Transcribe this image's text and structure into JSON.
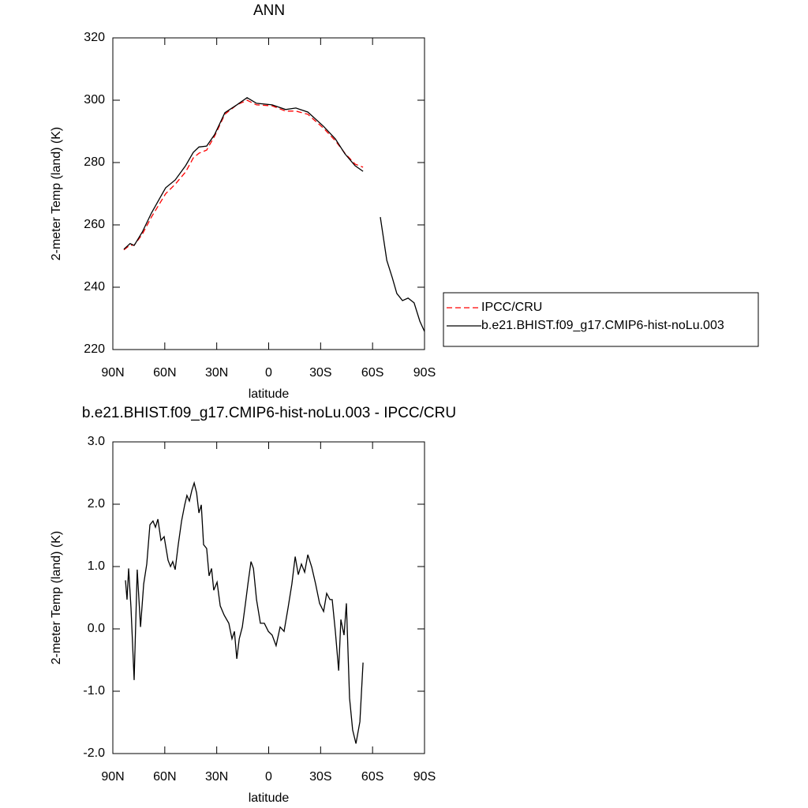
{
  "chart_data": [
    {
      "type": "line",
      "title": "ANN",
      "xlabel": "latitude",
      "ylabel": "2-meter Temp (land) (K)",
      "x": [
        83.6,
        80,
        77.7,
        73,
        67.7,
        59.5,
        54,
        48,
        43.5,
        40.3,
        35.8,
        31.2,
        25.3,
        18.4,
        12.5,
        7,
        -2,
        -9.8,
        -15.7,
        -22.6,
        -31.7,
        -38.5,
        -44,
        -49.9,
        -54.5,
        -60,
        -64.5,
        -68.2,
        -71.4,
        -74,
        -77.3,
        -80.5,
        -84,
        -87.3,
        -90
      ],
      "series": [
        {
          "name": "IPCC/CRU",
          "color": "#ff0000",
          "dashed": true,
          "values": [
            252,
            253.5,
            253.5,
            257,
            262.5,
            270,
            273,
            277,
            281.5,
            283,
            284,
            288.5,
            295.5,
            298.5,
            300,
            298.5,
            298.2,
            296.5,
            296.5,
            295.5,
            291,
            287,
            283,
            279.5,
            278.5,
            null,
            null,
            null,
            null,
            null,
            null,
            null,
            null,
            null,
            null
          ]
        },
        {
          "name": "b.e21.BHIST.f09_g17.CMIP6-hist-noLu.003",
          "color": "#000000",
          "dashed": false,
          "values": [
            252.2,
            254,
            253.4,
            257.7,
            263.8,
            271.9,
            274.4,
            279,
            283.3,
            285,
            285.3,
            289,
            296,
            298.5,
            300.8,
            299,
            298.5,
            297,
            297.5,
            296.2,
            291.6,
            287.6,
            282.8,
            279,
            277.2,
            null,
            262.5,
            248.6,
            243,
            238,
            235.7,
            236.5,
            235,
            229.1,
            225.8
          ]
        }
      ],
      "xlim": [
        90,
        -90
      ],
      "xticks": [
        {
          "value": 90,
          "label": "90N"
        },
        {
          "value": 60,
          "label": "60N"
        },
        {
          "value": 30,
          "label": "30N"
        },
        0,
        {
          "value": -30,
          "label": "30S"
        },
        {
          "value": -60,
          "label": "60S"
        },
        {
          "value": -90,
          "label": "90S"
        }
      ],
      "ylim": [
        220,
        320
      ],
      "yticks": [
        220,
        240,
        260,
        280,
        300,
        320
      ],
      "legend": "right"
    },
    {
      "type": "line",
      "title": "b.e21.BHIST.f09_g17.CMIP6-hist-noLu.003 - IPCC/CRU",
      "xlabel": "latitude",
      "ylabel": "2-meter Temp (land) (K)",
      "x": [
        82.7,
        81.8,
        80.9,
        79.5,
        77.7,
        75.9,
        74,
        72.2,
        70.4,
        68.6,
        66.8,
        65.4,
        64,
        62.2,
        60.4,
        58.1,
        56.7,
        55.4,
        54,
        52.2,
        50.3,
        48.5,
        47.2,
        45.8,
        44.4,
        43,
        41.6,
        40.3,
        38.9,
        37.6,
        35.8,
        34.4,
        33,
        31.7,
        29.8,
        28,
        25.7,
        23,
        21.2,
        19.8,
        18.4,
        17,
        15.2,
        13.4,
        12,
        10.2,
        8.8,
        7,
        4.8,
        2.5,
        0.2,
        -2,
        -4.3,
        -6.6,
        -8.9,
        -11.2,
        -13.4,
        -15.3,
        -17.1,
        -18.9,
        -20.8,
        -22.6,
        -24.9,
        -27.1,
        -29.4,
        -31.7,
        -33.5,
        -35.4,
        -36.7,
        -38.5,
        -40.4,
        -41.7,
        -43.5,
        -44.9,
        -46.7,
        -48.5,
        -50.4,
        -52.7,
        -54.5
      ],
      "values": [
        0.78,
        0.47,
        0.97,
        0.34,
        -0.82,
        0.95,
        0.03,
        0.72,
        1.04,
        1.67,
        1.73,
        1.63,
        1.76,
        1.42,
        1.48,
        1.1,
        1.0,
        1.08,
        0.95,
        1.35,
        1.73,
        1.99,
        2.14,
        2.05,
        2.22,
        2.34,
        2.18,
        1.86,
        1.99,
        1.35,
        1.29,
        0.85,
        0.97,
        0.62,
        0.75,
        0.37,
        0.22,
        0.09,
        -0.16,
        -0.04,
        -0.48,
        -0.16,
        0.03,
        0.41,
        0.72,
        1.08,
        0.97,
        0.47,
        0.09,
        0.09,
        -0.04,
        -0.1,
        -0.27,
        0.03,
        -0.04,
        0.34,
        0.72,
        1.16,
        0.87,
        1.04,
        0.91,
        1.19,
        0.99,
        0.72,
        0.41,
        0.28,
        0.57,
        0.47,
        0.47,
        -0.04,
        -0.67,
        0.15,
        -0.1,
        0.41,
        -1.11,
        -1.62,
        -1.84,
        -1.49,
        -0.54
      ],
      "color": "#000000",
      "xlim": [
        90,
        -90
      ],
      "xticks": [
        {
          "value": 90,
          "label": "90N"
        },
        {
          "value": 60,
          "label": "60N"
        },
        {
          "value": 30,
          "label": "30N"
        },
        0,
        {
          "value": -30,
          "label": "30S"
        },
        {
          "value": -60,
          "label": "60S"
        },
        {
          "value": -90,
          "label": "90S"
        }
      ],
      "ylim": [
        -2,
        3
      ],
      "yticks": [
        {
          "value": -2,
          "label": "-2.0"
        },
        {
          "value": -1,
          "label": "-1.0"
        },
        {
          "value": 0,
          "label": "0.0"
        },
        {
          "value": 1,
          "label": "1.0"
        },
        {
          "value": 2,
          "label": "2.0"
        },
        {
          "value": 3,
          "label": "3.0"
        }
      ]
    }
  ]
}
